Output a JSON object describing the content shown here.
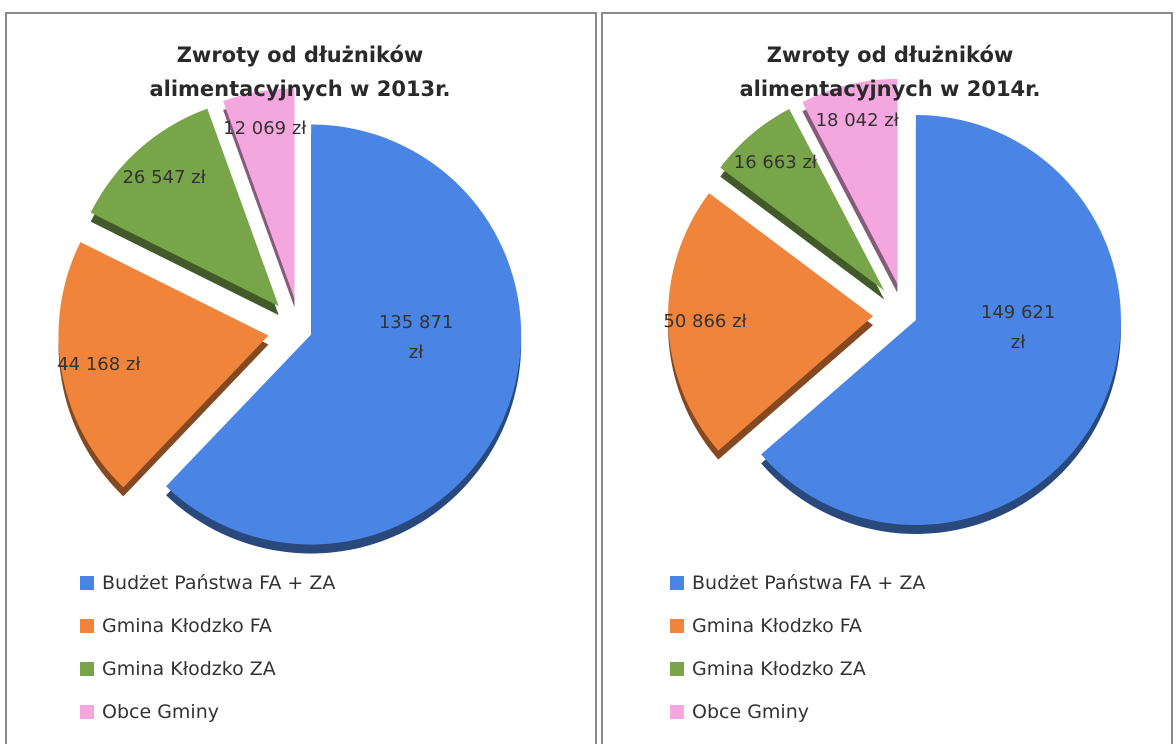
{
  "chart_data": [
    {
      "type": "pie",
      "title": "Zwroty od dłużników alimentacyjnych w 2013r.",
      "categories": [
        "Budżet Państwa FA + ZA",
        "Gmina Kłodzko FA",
        "Gmina Kłodzko ZA",
        "Obce Gminy"
      ],
      "values": [
        135871,
        44168,
        26547,
        12069
      ],
      "value_labels": [
        "135 871 zł",
        "44 168 zł",
        "26 547 zł",
        "12 069 zł"
      ],
      "colors": [
        "#4a84e4",
        "#f0843a",
        "#78a44a",
        "#f4a6de"
      ]
    },
    {
      "type": "pie",
      "title": "Zwroty od dłużników alimentacyjnych w 2014r.",
      "categories": [
        "Budżet Państwa FA + ZA",
        "Gmina Kłodzko FA",
        "Gmina Kłodzko ZA",
        "Obce Gminy"
      ],
      "values": [
        149621,
        50866,
        16663,
        18042
      ],
      "value_labels": [
        "149 621 zł",
        "50 866 zł",
        "16 663 zł",
        "18 042 zł"
      ],
      "colors": [
        "#4a84e4",
        "#f0843a",
        "#78a44a",
        "#f4a6de"
      ]
    }
  ]
}
